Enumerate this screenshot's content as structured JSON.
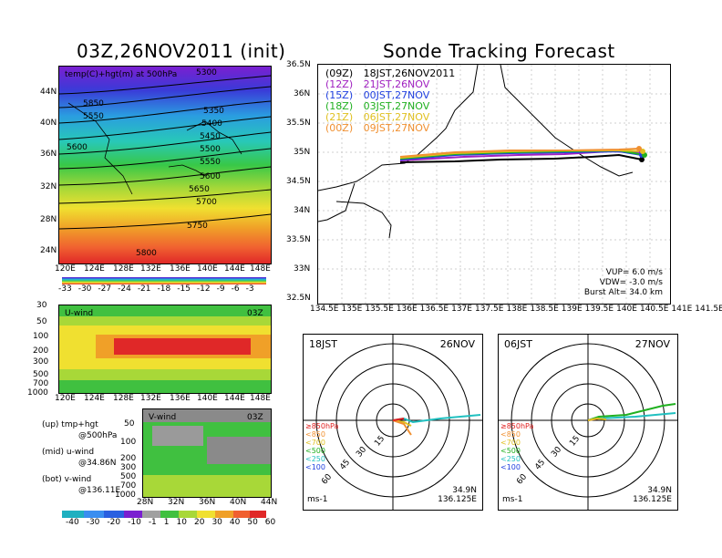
{
  "left": {
    "title": "03Z,26NOV2011 (init)",
    "map_label": "temp(C)+hgt(m) at 500hPa",
    "map_contours": [
      "5300",
      "5350",
      "5400",
      "5450",
      "5500",
      "5550",
      "5600",
      "5650",
      "5700",
      "5750",
      "5800",
      "5850",
      "5550",
      "5600",
      "5700",
      "5450"
    ],
    "map_lat_ticks": [
      "44N",
      "40N",
      "36N",
      "32N",
      "28N",
      "24N"
    ],
    "map_lon_ticks": [
      "120E",
      "124E",
      "128E",
      "132E",
      "136E",
      "140E",
      "144E",
      "148E"
    ],
    "temp_colorbar": [
      "-33",
      "-30",
      "-27",
      "-24",
      "-21",
      "-18",
      "-15",
      "-12",
      "-9",
      "-6",
      "-3"
    ],
    "u_label": "U-wind",
    "u_time": "03Z",
    "u_p_ticks": [
      "30",
      "50",
      "100",
      "200",
      "300",
      "500",
      "700",
      "1000"
    ],
    "u_lon_ticks": [
      "120E",
      "124E",
      "128E",
      "132E",
      "136E",
      "140E",
      "144E",
      "148E"
    ],
    "v_label": "V-wind",
    "v_time": "03Z",
    "v_p_ticks": [
      "50",
      "100",
      "200",
      "300",
      "500",
      "700",
      "1000"
    ],
    "v_lat_ticks": [
      "28N",
      "32N",
      "36N",
      "40N",
      "44N"
    ],
    "notes": [
      "(up) tmp+hgt",
      "@500hPa",
      "(mid) u-wind",
      "@34.86N",
      "(bot) v-wind",
      "@136.11E"
    ],
    "wind_colorbar": [
      "-40",
      "-30",
      "-20",
      "-10",
      "-1",
      "1",
      "10",
      "20",
      "30",
      "40",
      "50",
      "60"
    ]
  },
  "right": {
    "title": "Sonde Tracking Forecast",
    "legend": [
      {
        "code": "(09Z)",
        "text": "18JST,26NOV2011",
        "color": "#000000"
      },
      {
        "code": "(12Z)",
        "text": "21JST,26NOV",
        "color": "#a020c0"
      },
      {
        "code": "(15Z)",
        "text": "00JST,27NOV",
        "color": "#2040e0"
      },
      {
        "code": "(18Z)",
        "text": "03JST,27NOV",
        "color": "#20b020"
      },
      {
        "code": "(21Z)",
        "text": "06JST,27NOV",
        "color": "#e0c020"
      },
      {
        "code": "(00Z)",
        "text": "09JST,27NOV",
        "color": "#f09030"
      }
    ],
    "lat_ticks": [
      "36.5N",
      "36N",
      "35.5N",
      "35N",
      "34.5N",
      "34N",
      "33.5N",
      "33N",
      "32.5N"
    ],
    "lon_ticks": [
      "134.5E",
      "135E",
      "135.5E",
      "136E",
      "136.5E",
      "137E",
      "137.5E",
      "138E",
      "138.5E",
      "139E",
      "139.5E",
      "140E",
      "140.5E",
      "141E",
      "141.5E"
    ],
    "params": [
      "VUP= 6.0 m/s",
      "VDW= -3.0 m/s",
      "Burst Alt= 34.0 km"
    ],
    "polar_left": {
      "tl": "18JST",
      "tr": "26NOV",
      "units": "ms-1",
      "pos1": "34.9N",
      "pos2": "136.125E"
    },
    "polar_right": {
      "tl": "06JST",
      "tr": "27NOV",
      "units": "ms-1",
      "pos1": "34.9N",
      "pos2": "136.125E"
    },
    "polar_rings": [
      "15",
      "30",
      "45",
      "60"
    ],
    "polar_levels": [
      {
        "text": "≥850hPa",
        "color": "#e02020"
      },
      {
        "text": "<850",
        "color": "#f09030"
      },
      {
        "text": "<700",
        "color": "#e0c020"
      },
      {
        "text": "<500",
        "color": "#20b020"
      },
      {
        "text": "<250",
        "color": "#20c0c0"
      },
      {
        "text": "<100",
        "color": "#2040e0"
      }
    ]
  }
}
